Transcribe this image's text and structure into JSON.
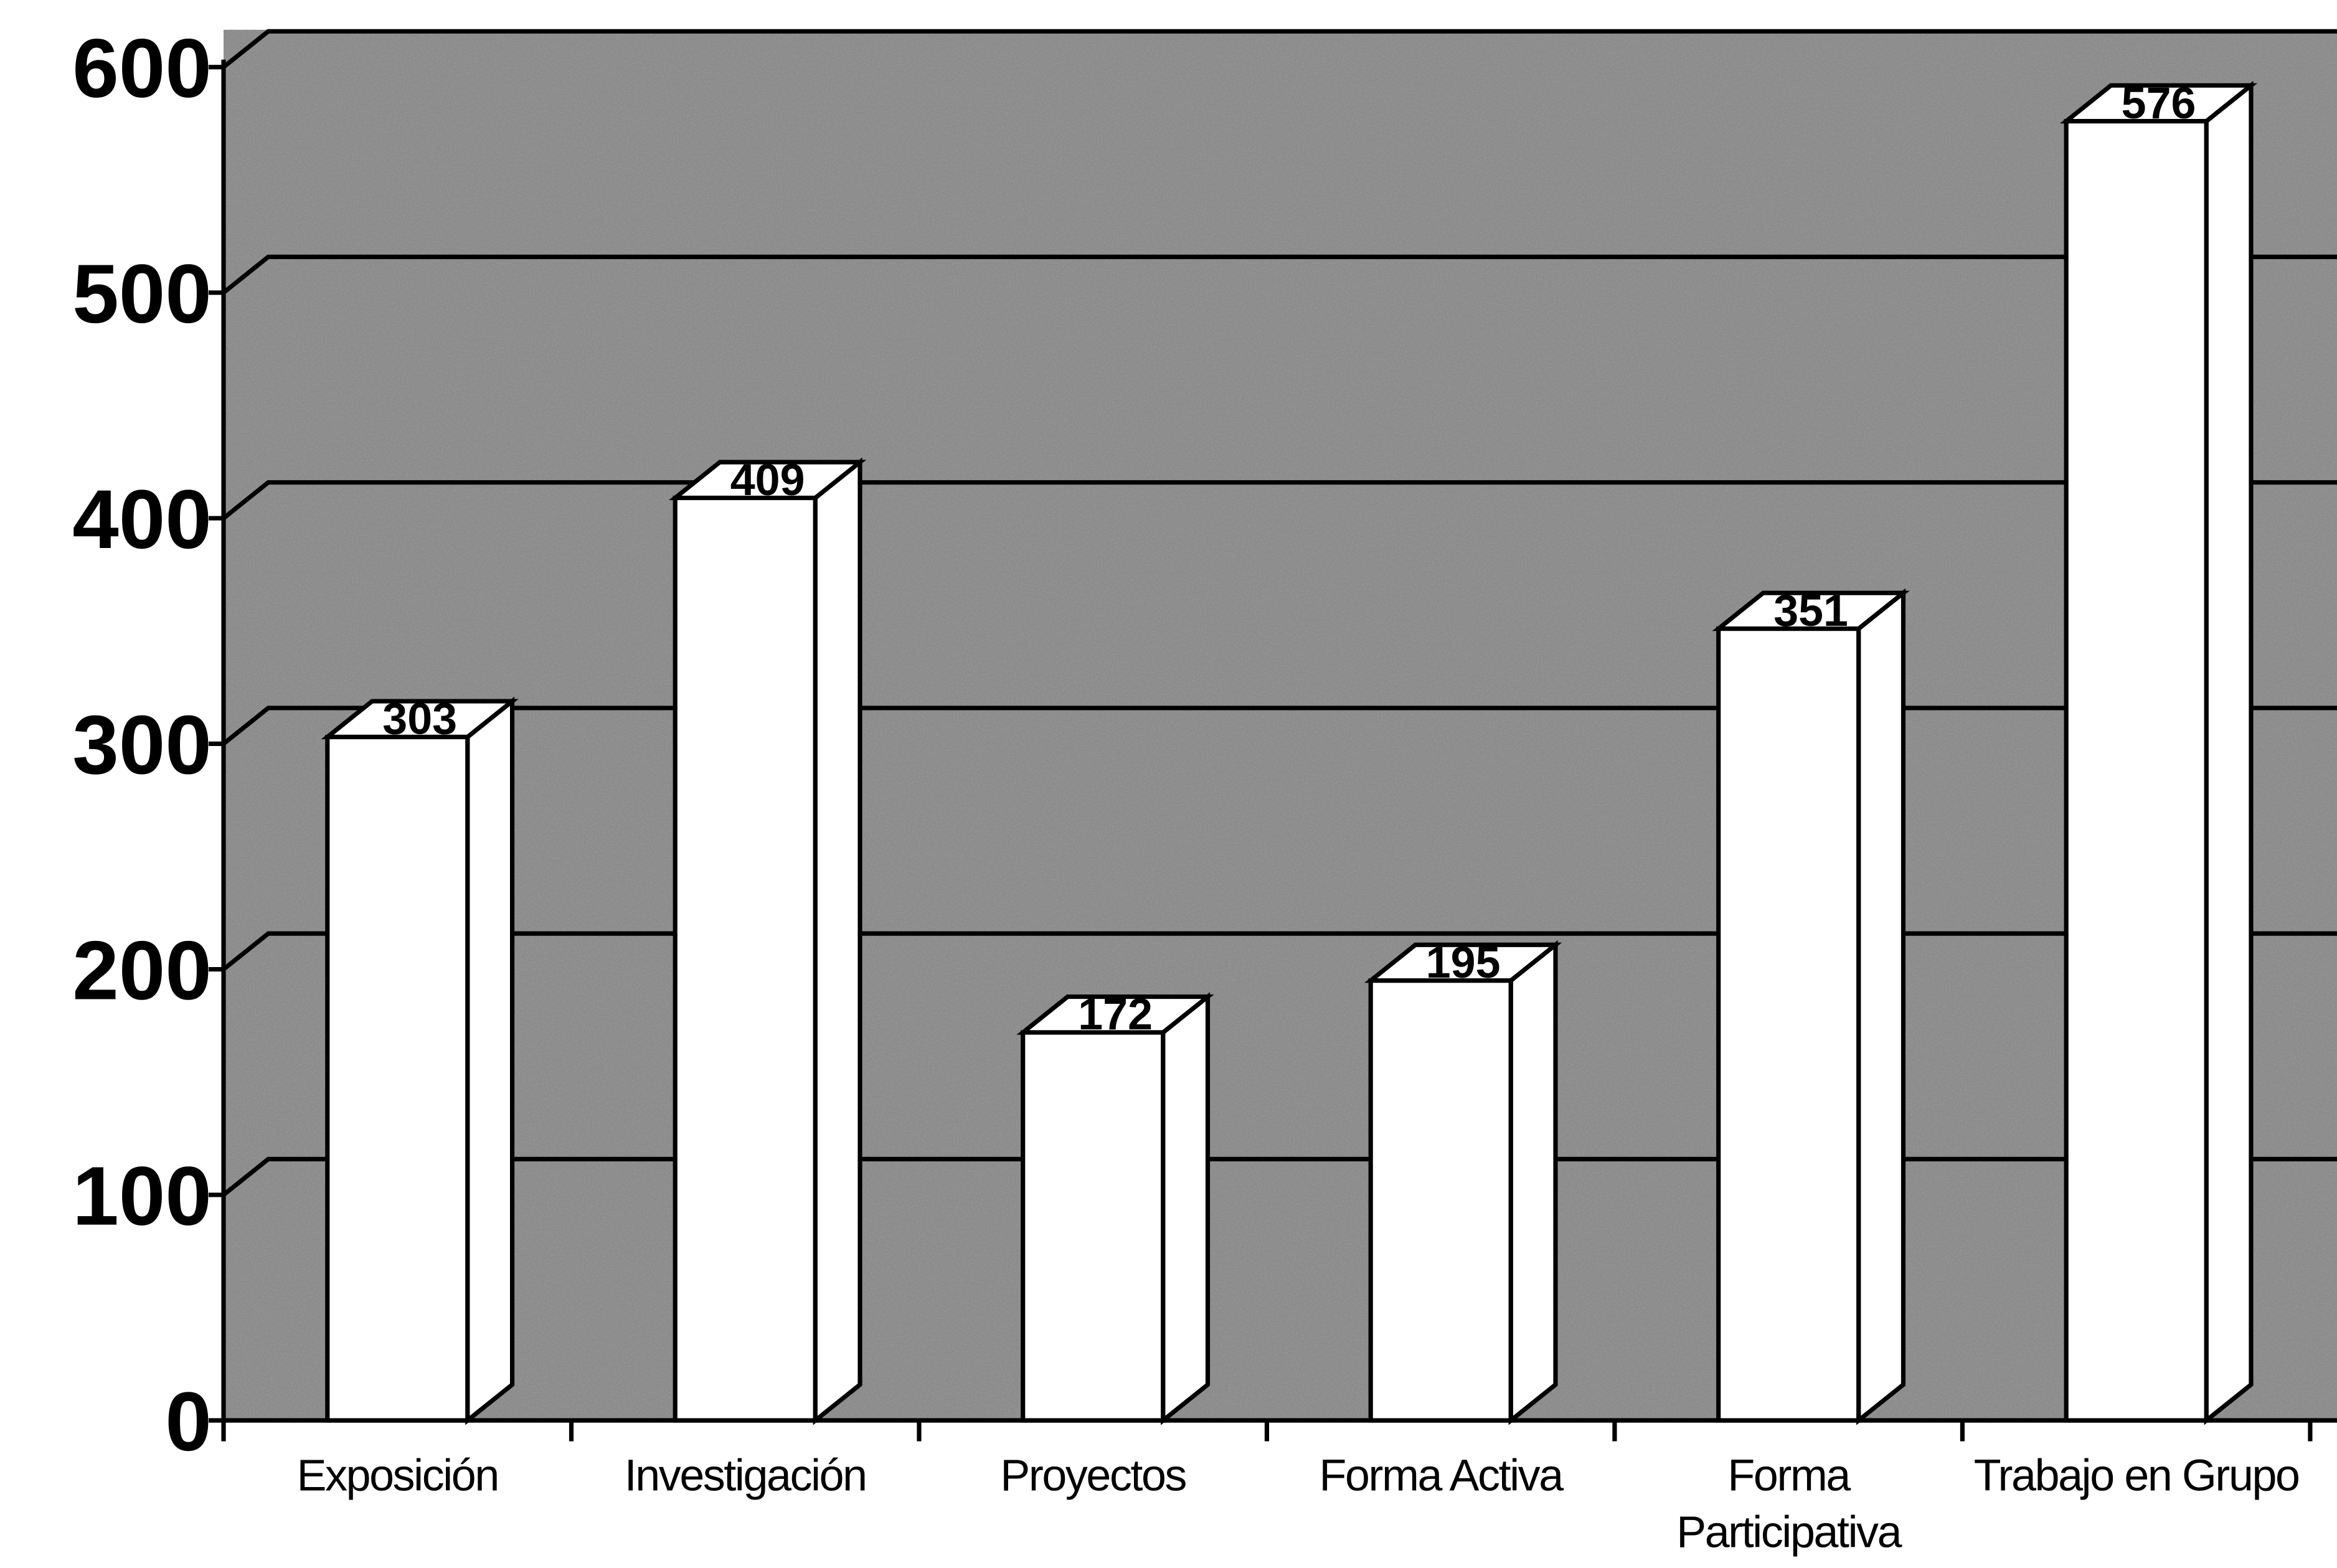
{
  "chart_data": {
    "type": "bar3d",
    "categories": [
      "Exposición",
      "Investigación",
      "Proyectos",
      "Forma Activa",
      "Forma Participativa",
      "Trabajo en Grupo"
    ],
    "values": [
      303,
      409,
      172,
      195,
      351,
      576
    ],
    "color": "#ffffff",
    "ylim": [
      0,
      600
    ],
    "yticks": [
      0,
      100,
      200,
      300,
      400,
      500,
      600
    ],
    "grid": true
  }
}
